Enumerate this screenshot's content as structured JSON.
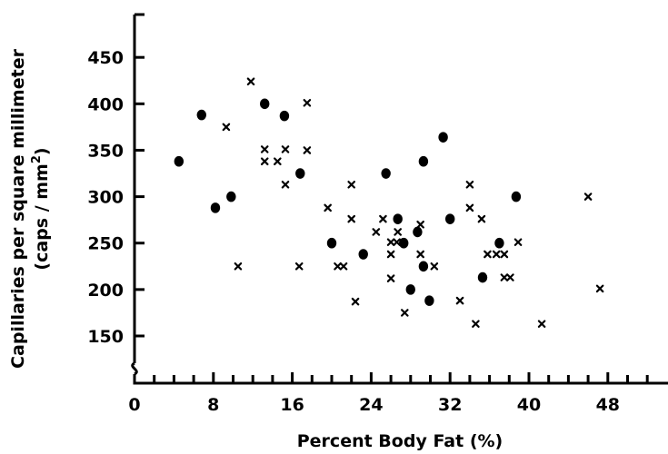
{
  "chart_data": {
    "type": "scatter",
    "xlabel": "Percent Body Fat (%)",
    "ylabel_line1": "Capillaries per square millimeter",
    "ylabel_line2_prefix": "(caps / mm",
    "ylabel_line2_sup": "2",
    "ylabel_line2_suffix": ")",
    "xlim": [
      0,
      52
    ],
    "ylim": [
      100,
      490
    ],
    "x_ticks": [
      0,
      8,
      16,
      24,
      32,
      40,
      48
    ],
    "x_tick_labels": [
      "0",
      "8",
      "16",
      "24",
      "32",
      "40",
      "48"
    ],
    "y_ticks": [
      150,
      200,
      250,
      300,
      350,
      400,
      450
    ],
    "y_tick_labels": [
      "150",
      "200",
      "250",
      "300",
      "350",
      "400",
      "450"
    ],
    "axis_break": "y",
    "grid": false,
    "series": [
      {
        "marker": "filled-circle",
        "points": [
          [
            4.5,
            338
          ],
          [
            6.8,
            388
          ],
          [
            8.2,
            288
          ],
          [
            9.8,
            300
          ],
          [
            13.2,
            400
          ],
          [
            15.2,
            387
          ],
          [
            16.8,
            325
          ],
          [
            20.0,
            250
          ],
          [
            23.2,
            238
          ],
          [
            25.5,
            325
          ],
          [
            26.7,
            276
          ],
          [
            27.3,
            250
          ],
          [
            28.0,
            200
          ],
          [
            28.7,
            262
          ],
          [
            29.3,
            338
          ],
          [
            29.3,
            225
          ],
          [
            29.9,
            188
          ],
          [
            31.3,
            364
          ],
          [
            32.0,
            276
          ],
          [
            35.3,
            213
          ],
          [
            37.0,
            250
          ],
          [
            38.7,
            300
          ]
        ]
      },
      {
        "marker": "x",
        "points": [
          [
            9.3,
            375
          ],
          [
            10.5,
            225
          ],
          [
            11.8,
            424
          ],
          [
            13.2,
            351
          ],
          [
            13.2,
            338
          ],
          [
            14.5,
            338
          ],
          [
            15.3,
            351
          ],
          [
            15.3,
            313
          ],
          [
            16.7,
            225
          ],
          [
            17.5,
            401
          ],
          [
            17.5,
            350
          ],
          [
            19.6,
            288
          ],
          [
            20.6,
            225
          ],
          [
            21.2,
            225
          ],
          [
            22.0,
            313
          ],
          [
            22.0,
            276
          ],
          [
            22.4,
            187
          ],
          [
            24.5,
            262
          ],
          [
            25.2,
            276
          ],
          [
            26.0,
            251
          ],
          [
            26.0,
            238
          ],
          [
            26.0,
            212
          ],
          [
            26.6,
            251
          ],
          [
            26.7,
            262
          ],
          [
            27.4,
            175
          ],
          [
            29.0,
            238
          ],
          [
            29.0,
            270
          ],
          [
            30.4,
            225
          ],
          [
            33.0,
            188
          ],
          [
            34.0,
            313
          ],
          [
            34.0,
            288
          ],
          [
            34.6,
            163
          ],
          [
            35.2,
            276
          ],
          [
            35.8,
            238
          ],
          [
            36.7,
            238
          ],
          [
            37.5,
            213
          ],
          [
            37.5,
            238
          ],
          [
            38.1,
            213
          ],
          [
            38.9,
            251
          ],
          [
            41.3,
            163
          ],
          [
            46.0,
            300
          ],
          [
            47.2,
            201
          ]
        ]
      }
    ]
  }
}
